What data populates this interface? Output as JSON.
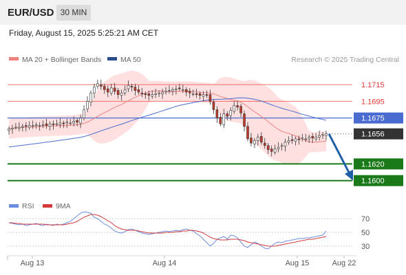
{
  "header": {
    "symbol": "EUR/USD",
    "timeframe": "30 MIN"
  },
  "datetime": "Friday, August 15, 2025 5:25:21 AM CET",
  "legend": {
    "ma20_bb": "MA 20 + Bollinger Bands",
    "ma50": "MA 50",
    "credit": "Research © 2025 Trading Central"
  },
  "rsi_legend": {
    "rsi": "RSI",
    "ma9": "9MA"
  },
  "colors": {
    "bollinger_fill": "#ffd6d6",
    "ma20": "#f08080",
    "ma50": "#4a6bd0",
    "up": "#ffffff",
    "down": "#c0392b",
    "pivot": "#e53935",
    "support": "#1a7a1a",
    "current": "#333333",
    "forecast": "#1f5fa8",
    "rsi": "#6a8de0",
    "rsi_ma": "#d23a3a"
  },
  "chart_data": [
    {
      "type": "candlestick",
      "title": "EUR/USD",
      "timeframe": "30 MIN",
      "x_labels": [
        "Aug 13",
        "Aug 14",
        "Aug 15",
        "Aug 22"
      ],
      "ylim": [
        1.1594,
        1.1734
      ],
      "series": [
        {
          "name": "MA 20 + Bollinger Bands"
        },
        {
          "name": "MA 50"
        }
      ],
      "close": [
        1.1662,
        1.1663,
        1.1664,
        1.1664,
        1.1665,
        1.1665,
        1.1666,
        1.1666,
        1.1667,
        1.1666,
        1.1667,
        1.1666,
        1.1668,
        1.1667,
        1.1668,
        1.1669,
        1.1668,
        1.167,
        1.1669,
        1.1671,
        1.167,
        1.1675,
        1.1685,
        1.1695,
        1.1705,
        1.1712,
        1.1716,
        1.1713,
        1.1709,
        1.1706,
        1.1711,
        1.1707,
        1.1703,
        1.1705,
        1.1709,
        1.1714,
        1.1712,
        1.1708,
        1.1706,
        1.1704,
        1.1703,
        1.1702,
        1.1703,
        1.1704,
        1.1705,
        1.1706,
        1.1707,
        1.1708,
        1.1709,
        1.171,
        1.171,
        1.1709,
        1.1706,
        1.1705,
        1.1704,
        1.1703,
        1.1702,
        1.1703,
        1.1702,
        1.1695,
        1.1685,
        1.1675,
        1.1668,
        1.168,
        1.1677,
        1.1684,
        1.169,
        1.1688,
        1.1681,
        1.1665,
        1.165,
        1.1645,
        1.1648,
        1.1652,
        1.1646,
        1.1642,
        1.1637,
        1.1635,
        1.1638,
        1.164,
        1.1642,
        1.1646,
        1.1648,
        1.1648,
        1.165,
        1.1649,
        1.1651,
        1.165,
        1.1652,
        1.1651,
        1.1652,
        1.1654,
        1.1655,
        1.1656
      ],
      "levels": [
        {
          "label": "1.1715",
          "value": 1.1715,
          "kind": "resistance"
        },
        {
          "label": "1.1695",
          "value": 1.1695,
          "kind": "resistance"
        },
        {
          "label": "1.1675",
          "value": 1.1675,
          "kind": "pivot"
        },
        {
          "label": "1.1656",
          "value": 1.1656,
          "kind": "last"
        },
        {
          "label": "1.1620",
          "value": 1.162,
          "kind": "support"
        },
        {
          "label": "1.1600",
          "value": 1.16,
          "kind": "support"
        }
      ],
      "forecast": {
        "from": 1.1656,
        "to": 1.16,
        "direction": "down"
      }
    },
    {
      "type": "line",
      "title": "RSI",
      "series": [
        {
          "name": "RSI"
        },
        {
          "name": "9MA"
        }
      ],
      "y_ticks": [
        70,
        50,
        30
      ],
      "ylim": [
        20,
        80
      ],
      "rsi": [
        64,
        63,
        62,
        61,
        62,
        60,
        61,
        62,
        63,
        61,
        60,
        62,
        61,
        60,
        62,
        61,
        62,
        64,
        66,
        70,
        74,
        78,
        80,
        79,
        78,
        72,
        70,
        66,
        62,
        60,
        56,
        52,
        50,
        49,
        51,
        54,
        55,
        53,
        51,
        49,
        48,
        47,
        48,
        49,
        50,
        51,
        52,
        51,
        52,
        53,
        52,
        54,
        55,
        53,
        52,
        48,
        45,
        40,
        35,
        30,
        34,
        40,
        42,
        44,
        40,
        46,
        45,
        42,
        36,
        30,
        28,
        32,
        36,
        34,
        30,
        27,
        26,
        30,
        34,
        36,
        35,
        37,
        38,
        39,
        40,
        41,
        41,
        42,
        42,
        43,
        44,
        45,
        46,
        52
      ],
      "rsi_ma": [
        64,
        64,
        63,
        63,
        62,
        62,
        62,
        62,
        62,
        62,
        62,
        61,
        61,
        61,
        61,
        61,
        61,
        62,
        63,
        64,
        66,
        69,
        72,
        74,
        76,
        76,
        75,
        73,
        70,
        67,
        64,
        60,
        57,
        55,
        54,
        53,
        53,
        53,
        52,
        51,
        50,
        49,
        49,
        49,
        49,
        49,
        50,
        50,
        50,
        51,
        51,
        52,
        52,
        53,
        53,
        52,
        51,
        49,
        46,
        43,
        41,
        40,
        39,
        39,
        39,
        40,
        40,
        40,
        39,
        38,
        36,
        35,
        34,
        33,
        32,
        31,
        30,
        30,
        30,
        31,
        32,
        33,
        34,
        35,
        36,
        37,
        38,
        39,
        40,
        40,
        41,
        42,
        43,
        44
      ]
    }
  ]
}
